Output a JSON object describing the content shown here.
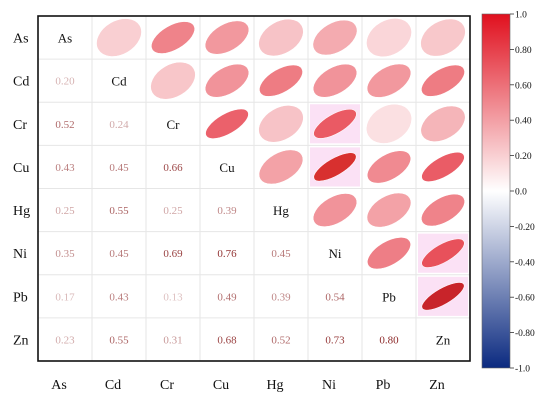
{
  "chart_data": {
    "type": "heatmap",
    "subtype": "correlation-matrix",
    "variables": [
      "As",
      "Cd",
      "Cr",
      "Cu",
      "Hg",
      "Ni",
      "Pb",
      "Zn"
    ],
    "lower_triangle": "values",
    "upper_triangle": "ellipses",
    "diagonal": "variable names",
    "matrix": [
      [
        1.0,
        0.2,
        0.52,
        0.43,
        0.25,
        0.35,
        0.17,
        0.23
      ],
      [
        0.2,
        1.0,
        0.24,
        0.45,
        0.55,
        0.45,
        0.43,
        0.55
      ],
      [
        0.52,
        0.24,
        1.0,
        0.66,
        0.25,
        0.69,
        0.13,
        0.31
      ],
      [
        0.43,
        0.45,
        0.66,
        1.0,
        0.39,
        0.76,
        0.49,
        0.68
      ],
      [
        0.25,
        0.55,
        0.25,
        0.39,
        1.0,
        0.45,
        0.39,
        0.52
      ],
      [
        0.35,
        0.45,
        0.69,
        0.76,
        0.45,
        1.0,
        0.54,
        0.73
      ],
      [
        0.17,
        0.43,
        0.13,
        0.49,
        0.39,
        0.54,
        1.0,
        0.8
      ],
      [
        0.23,
        0.55,
        0.31,
        0.68,
        0.52,
        0.73,
        0.8,
        1.0
      ]
    ],
    "value_labels": [
      [
        "As",
        "",
        "",
        "",
        "",
        "",
        "",
        ""
      ],
      [
        "0.20",
        "Cd",
        "",
        "",
        "",
        "",
        "",
        ""
      ],
      [
        "0.52",
        "0.24",
        "Cr",
        "",
        "",
        "",
        "",
        ""
      ],
      [
        "0.43",
        "0.45",
        "0.66",
        "Cu",
        "",
        "",
        "",
        ""
      ],
      [
        "0.25",
        "0.55",
        "0.25",
        "0.39",
        "Hg",
        "",
        "",
        ""
      ],
      [
        "0.35",
        "0.45",
        "0.69",
        "0.76",
        "0.45",
        "Ni",
        "",
        ""
      ],
      [
        "0.17",
        "0.43",
        "0.13",
        "0.49",
        "0.39",
        "0.54",
        "Pb",
        ""
      ],
      [
        "0.23",
        "0.55",
        "0.31",
        "0.68",
        "0.52",
        "0.73",
        "0.80",
        "Zn"
      ]
    ],
    "colorbar": {
      "range": [
        -1.0,
        1.0
      ],
      "ticks": [
        "1.0",
        "0.80",
        "0.60",
        "0.40",
        "0.20",
        "0.0",
        "-0.20",
        "-0.40",
        "-0.60",
        "-0.80",
        "-1.0"
      ],
      "colors": {
        "negative": "#0b2a80",
        "zero": "#ffffff",
        "positive": "#e0101e"
      }
    },
    "significant_cell_highlight": "#f8c8ec",
    "grid": true
  }
}
